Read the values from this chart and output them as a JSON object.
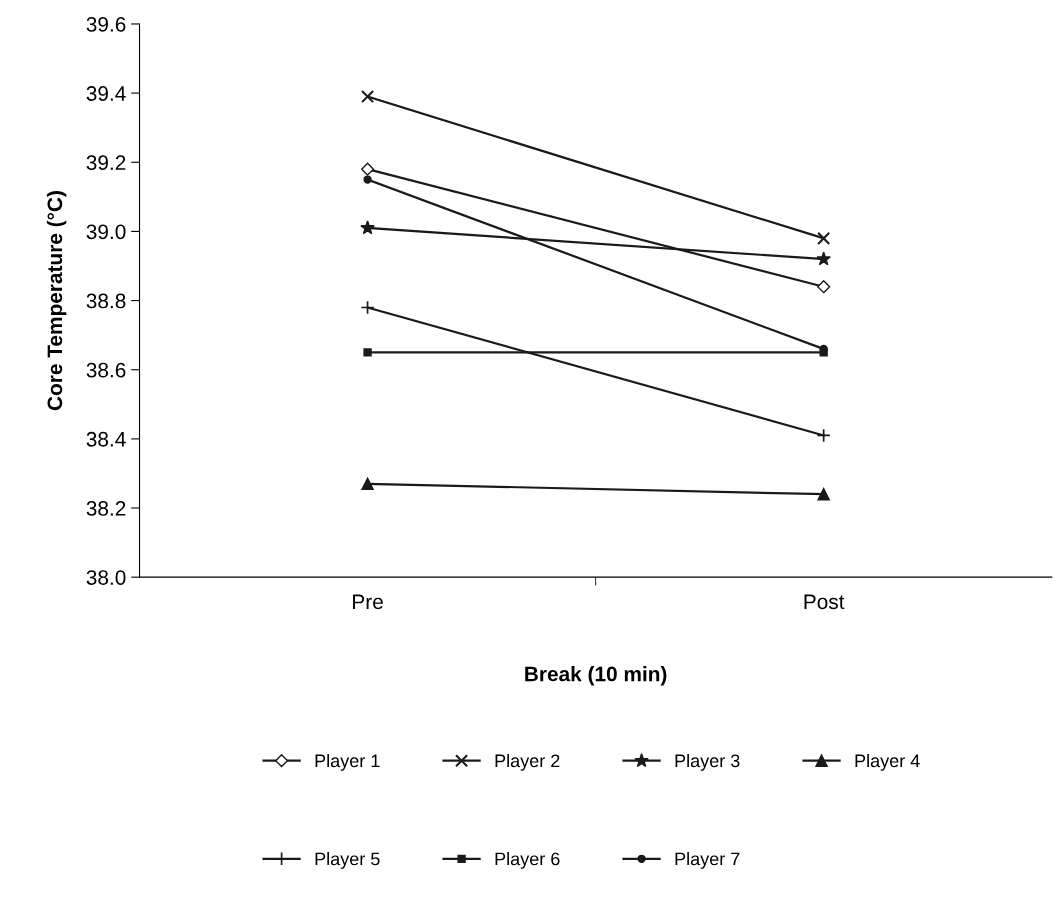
{
  "chart_data": {
    "type": "line",
    "xlabel": "Break (10 min)",
    "ylabel": "Core Temperature (°C)",
    "categories": [
      "Pre",
      "Post"
    ],
    "series": [
      {
        "name": "Player 1",
        "color": "#1a1a1a",
        "marker": "diamond",
        "values": [
          39.18,
          38.84
        ]
      },
      {
        "name": "Player 2",
        "color": "#1a1a1a",
        "marker": "cross",
        "values": [
          39.39,
          38.98
        ]
      },
      {
        "name": "Player 3",
        "color": "#1a1a1a",
        "marker": "star",
        "values": [
          39.01,
          38.92
        ]
      },
      {
        "name": "Player 4",
        "color": "#1a1a1a",
        "marker": "triangle",
        "values": [
          38.27,
          38.24
        ]
      },
      {
        "name": "Player 5",
        "color": "#1a1a1a",
        "marker": "plus",
        "values": [
          38.78,
          38.41
        ]
      },
      {
        "name": "Player 6",
        "color": "#1a1a1a",
        "marker": "square",
        "values": [
          38.65,
          38.65
        ]
      },
      {
        "name": "Player 7",
        "color": "#1a1a1a",
        "marker": "circle",
        "values": [
          39.15,
          38.66
        ]
      }
    ],
    "ylim": [
      38.0,
      39.6
    ],
    "yticks": [
      {
        "value": 38.0,
        "label": "38.0"
      },
      {
        "value": 38.2,
        "label": "38.2"
      },
      {
        "value": 38.4,
        "label": "38.4"
      },
      {
        "value": 38.6,
        "label": "38.6"
      },
      {
        "value": 38.8,
        "label": "38.8"
      },
      {
        "value": 39.0,
        "label": "39.0"
      },
      {
        "value": 39.2,
        "label": "39.2"
      },
      {
        "value": 39.4,
        "label": "39.4"
      },
      {
        "value": 39.6,
        "label": "39.6"
      }
    ],
    "grid": false,
    "legend": "bottom",
    "line_style": "solid"
  }
}
